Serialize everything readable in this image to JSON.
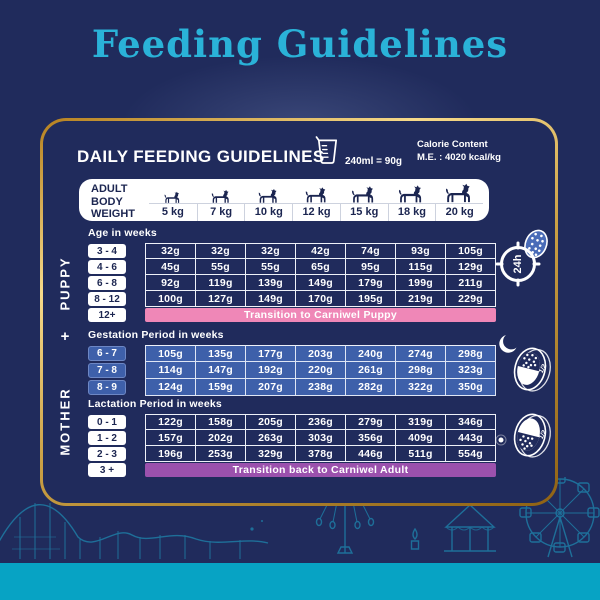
{
  "title": "Feeding Guidelines",
  "header": {
    "title": "DAILY FEEDING GUIDELINES",
    "measure_note": "240ml = 90g",
    "calorie_label": "Calorie Content",
    "calorie_value": "M.E. : 4020 kcal/kg"
  },
  "weight_header": {
    "label": "ADULT BODY WEIGHT",
    "weights": [
      "5 kg",
      "7 kg",
      "10 kg",
      "12 kg",
      "15 kg",
      "18 kg",
      "20 kg"
    ]
  },
  "side_labels": {
    "puppy": "PUPPY",
    "plus": "+",
    "mother": "MOTHER"
  },
  "sections": [
    {
      "id": "puppy",
      "subtitle": "Age in weeks",
      "style": "dark",
      "rows": [
        {
          "label": "3 - 4",
          "values": [
            "32g",
            "32g",
            "32g",
            "42g",
            "74g",
            "93g",
            "105g"
          ]
        },
        {
          "label": "4 - 6",
          "values": [
            "45g",
            "55g",
            "55g",
            "65g",
            "95g",
            "115g",
            "129g"
          ]
        },
        {
          "label": "6 - 8",
          "values": [
            "92g",
            "119g",
            "139g",
            "149g",
            "179g",
            "199g",
            "211g"
          ]
        },
        {
          "label": "8 - 12",
          "values": [
            "100g",
            "127g",
            "149g",
            "170g",
            "195g",
            "219g",
            "229g"
          ]
        }
      ],
      "banner": {
        "label": "12+",
        "text": "Transition to Carniwel Puppy",
        "color": "#ef87b7"
      }
    },
    {
      "id": "gestation",
      "subtitle": "Gestation Period in weeks",
      "style": "blue",
      "rows": [
        {
          "label": "6 - 7",
          "values": [
            "105g",
            "135g",
            "177g",
            "203g",
            "240g",
            "274g",
            "298g"
          ]
        },
        {
          "label": "7 - 8",
          "values": [
            "114g",
            "147g",
            "192g",
            "220g",
            "261g",
            "298g",
            "323g"
          ]
        },
        {
          "label": "8 - 9",
          "values": [
            "124g",
            "159g",
            "207g",
            "238g",
            "282g",
            "322g",
            "350g"
          ]
        }
      ]
    },
    {
      "id": "lactation",
      "subtitle": "Lactation Period in weeks",
      "style": "dark",
      "rows": [
        {
          "label": "0 - 1",
          "values": [
            "122g",
            "158g",
            "205g",
            "236g",
            "279g",
            "319g",
            "346g"
          ]
        },
        {
          "label": "1 - 2",
          "values": [
            "157g",
            "202g",
            "263g",
            "303g",
            "356g",
            "409g",
            "443g"
          ]
        },
        {
          "label": "2 - 3",
          "values": [
            "196g",
            "253g",
            "329g",
            "378g",
            "446g",
            "511g",
            "554g"
          ]
        }
      ],
      "banner": {
        "label": "3 +",
        "text": "Transition back to Carniwel Adult",
        "color": "#9b51ad"
      }
    }
  ],
  "icons": {
    "measuring_cup": "measuring-cup",
    "puppy_clock_label": "24h",
    "gestation_bowl_label": "1/2",
    "lactation_bowl_label": "1/2"
  },
  "colors": {
    "background": "#202b5c",
    "title": "#2ab2d8",
    "gold_border": "#d9ab4e",
    "table_blue": "#3e60aa",
    "banner_pink": "#ef87b7",
    "banner_purple": "#9b51ad",
    "footer_band": "#07a3c4",
    "decor_line": "#1e86ae"
  }
}
